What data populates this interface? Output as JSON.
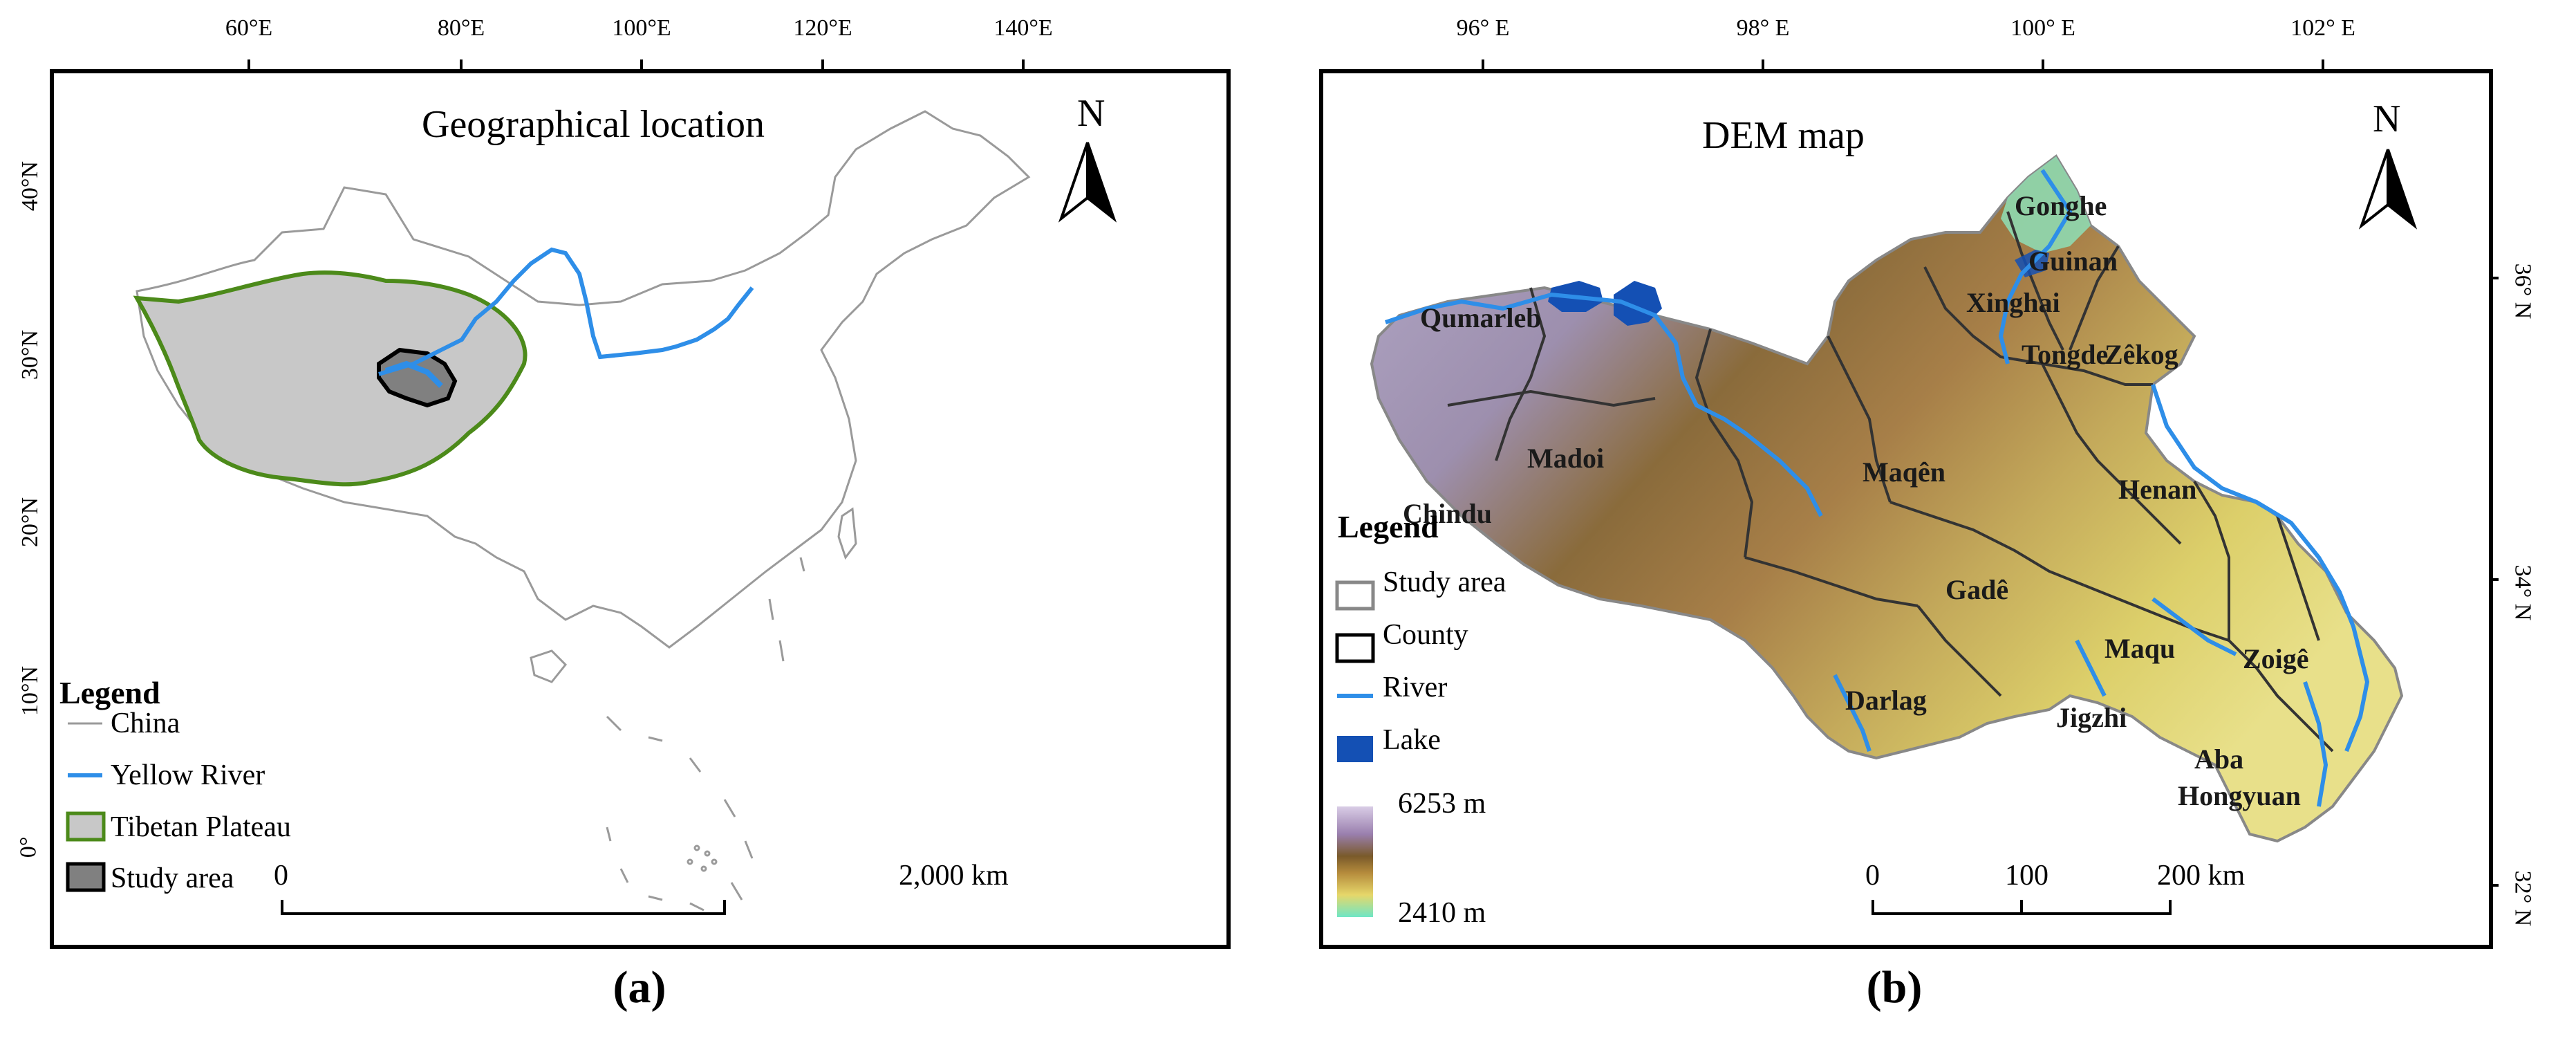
{
  "panel_a": {
    "title": "Geographical location",
    "caption": "(a)",
    "north": "N",
    "lon_ticks": [
      "60°E",
      "80°E",
      "100°E",
      "120°E",
      "140°E"
    ],
    "lat_ticks": [
      "40°N",
      "30°N",
      "20°N",
      "10°N",
      "0°"
    ],
    "legend": {
      "title": "Legend",
      "items": [
        "China",
        "Yellow River",
        "Tibetan Plateau",
        "Study area"
      ]
    },
    "scale": {
      "start": "0",
      "end": "2,000 km"
    }
  },
  "panel_b": {
    "title": "DEM map",
    "caption": "(b)",
    "north": "N",
    "lon_ticks": [
      "96° E",
      "98° E",
      "100° E",
      "102° E"
    ],
    "lat_ticks": [
      "36° N",
      "34° N",
      "32° N"
    ],
    "legend": {
      "title": "Legend",
      "items": [
        "Study area",
        "County",
        "River",
        "Lake"
      ],
      "elev_high": "6253 m",
      "elev_low": "2410 m"
    },
    "scale": {
      "start": "0",
      "mid": "100",
      "end": "200 km"
    },
    "counties": [
      "Gonghe",
      "Guinan",
      "Xinghai",
      "Tongde",
      "Zêkog",
      "Qumarleb",
      "Madoi",
      "Chindu",
      "Maqên",
      "Henan",
      "Gadê",
      "Maqu",
      "Zoigê",
      "Darlag",
      "Jigzhi",
      "Aba",
      "Hongyuan"
    ]
  },
  "colors": {
    "china_line": "#9a9a9a",
    "yellow_river": "#2e8ee8",
    "tibet_fill": "#c8c8c8",
    "tibet_line": "#4c8a1a",
    "study_fill": "#808080",
    "lake": "#1450b4"
  }
}
